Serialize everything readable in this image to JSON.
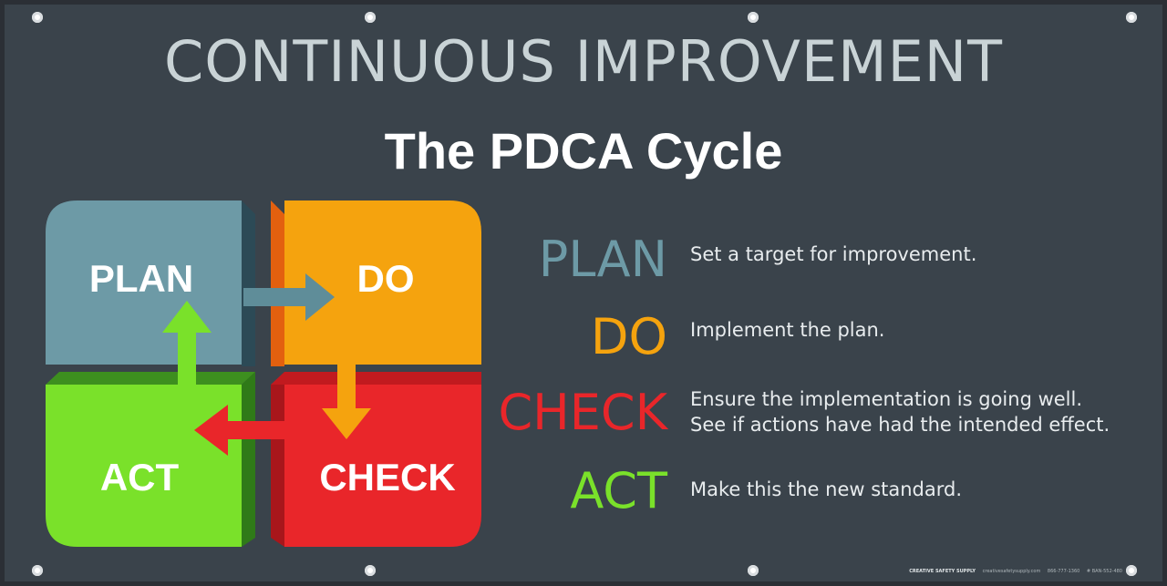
{
  "banner": {
    "title": "CONTINUOUS IMPROVEMENT",
    "subtitle": "The PDCA Cycle"
  },
  "cycle": {
    "plan": "PLAN",
    "do": "DO",
    "check": "CHECK",
    "act": "ACT"
  },
  "colors": {
    "plan": "#6d9aa6",
    "do": "#f5a30e",
    "check": "#e9262a",
    "act": "#7ae12a"
  },
  "legend": [
    {
      "word": "PLAN",
      "desc": "Set a target for improvement."
    },
    {
      "word": "DO",
      "desc": "Implement the plan."
    },
    {
      "word": "CHECK",
      "desc": "Ensure the implementation is going well.",
      "desc2": "See if actions have had the intended effect."
    },
    {
      "word": "ACT",
      "desc": "Make this the new standard."
    }
  ],
  "footer": {
    "brand": "CREATIVE SAFETY SUPPLY",
    "site": "creativesafetysupply.com",
    "phone": "866-777-1360",
    "sku": "# BAN-552-480"
  }
}
